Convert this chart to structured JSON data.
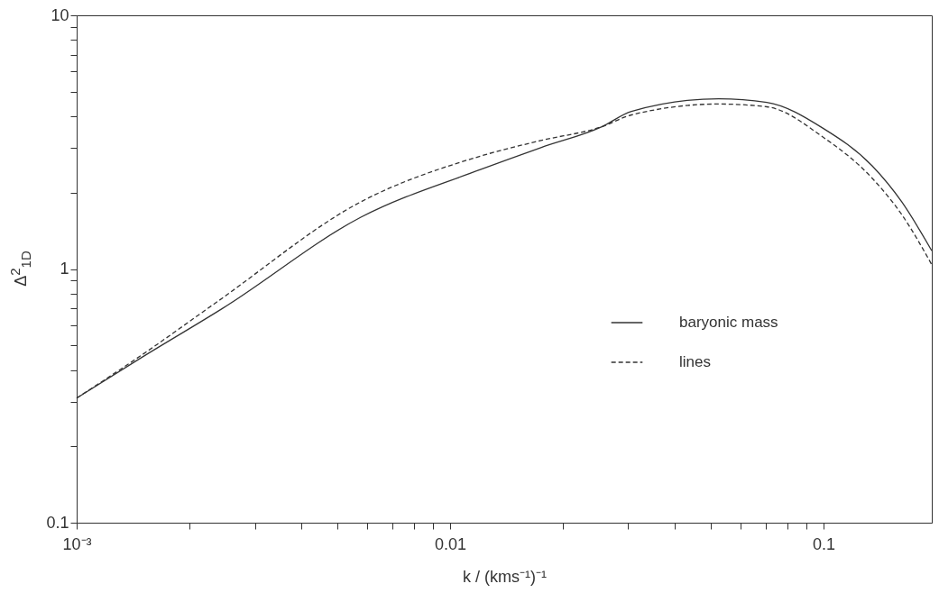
{
  "chart_data": {
    "type": "line",
    "xlabel": "k / (kms⁻¹)⁻¹",
    "ylabel": "Δ$^{2}$$_{1D}$",
    "log": "xy",
    "xlim": [
      0.001,
      0.195
    ],
    "ylim": [
      0.1,
      10
    ],
    "xticks": [
      {
        "value": 0.001,
        "label": "10⁻³"
      },
      {
        "value": 0.002,
        "label": null
      },
      {
        "value": 0.003,
        "label": null
      },
      {
        "value": 0.004,
        "label": null
      },
      {
        "value": 0.005,
        "label": null
      },
      {
        "value": 0.006,
        "label": null
      },
      {
        "value": 0.007,
        "label": null
      },
      {
        "value": 0.008,
        "label": null
      },
      {
        "value": 0.009,
        "label": null
      },
      0.01,
      {
        "value": 0.02,
        "label": null
      },
      {
        "value": 0.03,
        "label": null
      },
      {
        "value": 0.04,
        "label": null
      },
      {
        "value": 0.05,
        "label": null
      },
      {
        "value": 0.06,
        "label": null
      },
      {
        "value": 0.07,
        "label": null
      },
      {
        "value": 0.08,
        "label": null
      },
      {
        "value": 0.09,
        "label": null
      },
      0.1
    ],
    "yticks": [
      0.1,
      {
        "value": 0.2,
        "label": null
      },
      {
        "value": 0.3,
        "label": null
      },
      {
        "value": 0.4,
        "label": null
      },
      {
        "value": 0.5,
        "label": null
      },
      {
        "value": 0.6,
        "label": null
      },
      {
        "value": 0.7,
        "label": null
      },
      {
        "value": 0.8,
        "label": null
      },
      {
        "value": 0.9,
        "label": null
      },
      1,
      {
        "value": 2,
        "label": null
      },
      {
        "value": 3,
        "label": null
      },
      {
        "value": 4,
        "label": null
      },
      {
        "value": 5,
        "label": null
      },
      {
        "value": 6,
        "label": null
      },
      {
        "value": 7,
        "label": null
      },
      {
        "value": 8,
        "label": null
      },
      {
        "value": 9,
        "label": null
      },
      10
    ],
    "grid": false,
    "legend": "bottom right",
    "marker": "none",
    "series": [
      {
        "name": "baryonic mass",
        "color": "#333333",
        "line_style": "solid",
        "x": [
          0.001,
          0.0015,
          0.00246,
          0.00577,
          0.0121,
          0.0175,
          0.0255,
          0.0306,
          0.0524,
          0.0705,
          0.1,
          0.135,
          0.162,
          0.195
        ],
        "values": [
          0.31,
          0.45,
          0.7,
          1.6,
          2.47,
          3.01,
          3.64,
          4.18,
          4.69,
          4.54,
          3.58,
          2.55,
          1.84,
          1.18
        ]
      },
      {
        "name": "lines",
        "color": "#333333",
        "line_style": "dashed",
        "x": [
          0.001,
          0.0015,
          0.00237,
          0.00577,
          0.0121,
          0.0175,
          0.0255,
          0.0306,
          0.0524,
          0.0705,
          0.1,
          0.135,
          0.162,
          0.195
        ],
        "values": [
          0.31,
          0.46,
          0.74,
          1.84,
          2.79,
          3.21,
          3.64,
          4.05,
          4.47,
          4.36,
          3.3,
          2.28,
          1.64,
          1.04
        ]
      }
    ]
  }
}
